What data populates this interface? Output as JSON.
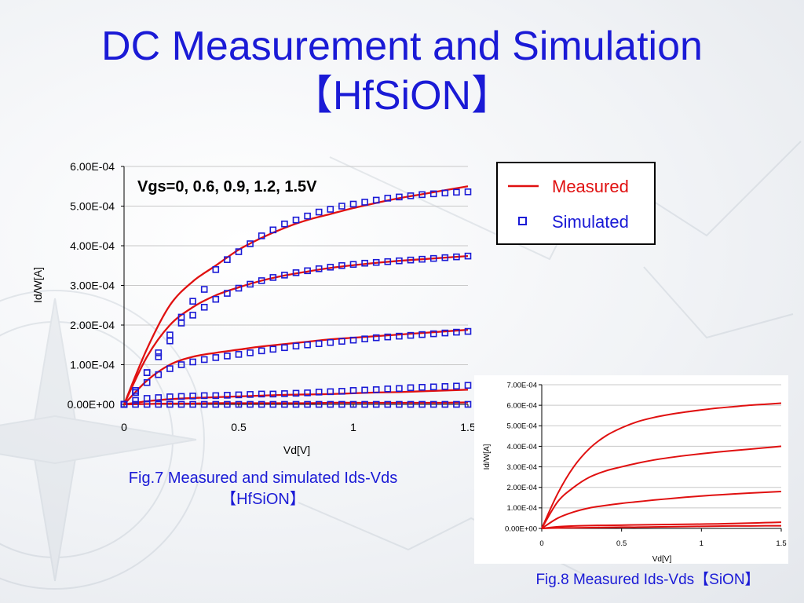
{
  "slide": {
    "title_line1": "DC Measurement and Simulation",
    "title_line2": "【HfSiON】"
  },
  "chart_data": [
    {
      "type": "line",
      "annotation": "Vgs=0, 0.6, 0.9, 1.2, 1.5V",
      "xlabel": "Vd[V]",
      "ylabel": "Id/W[A]",
      "xlim": [
        0,
        1.5
      ],
      "ylim": [
        0,
        0.0006
      ],
      "x_ticks": [
        "0",
        "0.5",
        "1",
        "1.5"
      ],
      "y_ticks": [
        "0.00E+00",
        "1.00E-04",
        "2.00E-04",
        "3.00E-04",
        "4.00E-04",
        "5.00E-04",
        "6.00E-04"
      ],
      "grid": "horizontal",
      "legend": {
        "placement": "right",
        "entries": [
          "Measured",
          "Simulated"
        ]
      },
      "colors": {
        "measured": "#e01010",
        "simulated": "#1a1ad6"
      },
      "caption_line1": "Fig.7 Measured and simulated Ids-Vds",
      "caption_line2": "【HfSiON】",
      "series": [
        {
          "name": "Measured",
          "vgs": 0.0,
          "x": [
            0,
            0.1,
            0.2,
            0.3,
            0.4,
            0.5,
            0.6,
            0.7,
            0.8,
            0.9,
            1.0,
            1.1,
            1.2,
            1.3,
            1.4,
            1.5
          ],
          "y": [
            0,
            1e-06,
            2e-06,
            2e-06,
            3e-06,
            3e-06,
            3e-06,
            3e-06,
            3e-06,
            4e-06,
            4e-06,
            4e-06,
            4e-06,
            4e-06,
            4e-06,
            5e-06
          ]
        },
        {
          "name": "Measured",
          "vgs": 0.6,
          "x": [
            0,
            0.1,
            0.2,
            0.3,
            0.4,
            0.5,
            0.6,
            0.7,
            0.8,
            0.9,
            1.0,
            1.1,
            1.2,
            1.3,
            1.4,
            1.5
          ],
          "y": [
            0,
            8e-06,
            1.3e-05,
            1.6e-05,
            1.8e-05,
            2e-05,
            2.2e-05,
            2.4e-05,
            2.5e-05,
            2.6e-05,
            2.8e-05,
            3e-05,
            3.1e-05,
            3.3e-05,
            3.5e-05,
            3.7e-05
          ]
        },
        {
          "name": "Measured",
          "vgs": 0.9,
          "x": [
            0,
            0.1,
            0.2,
            0.3,
            0.4,
            0.5,
            0.6,
            0.7,
            0.8,
            0.9,
            1.0,
            1.1,
            1.2,
            1.3,
            1.4,
            1.5
          ],
          "y": [
            0,
            6e-05,
            0.0001,
            0.00012,
            0.00013,
            0.000138,
            0.000146,
            0.000152,
            0.000158,
            0.000164,
            0.000168,
            0.000172,
            0.000176,
            0.00018,
            0.000184,
            0.000188
          ]
        },
        {
          "name": "Measured",
          "vgs": 1.2,
          "x": [
            0,
            0.1,
            0.2,
            0.3,
            0.4,
            0.5,
            0.6,
            0.7,
            0.8,
            0.9,
            1.0,
            1.1,
            1.2,
            1.3,
            1.4,
            1.5
          ],
          "y": [
            0,
            0.00012,
            0.0002,
            0.000245,
            0.000275,
            0.000295,
            0.000312,
            0.000325,
            0.000335,
            0.000344,
            0.000351,
            0.000357,
            0.000362,
            0.000366,
            0.00037,
            0.000374
          ]
        },
        {
          "name": "Measured",
          "vgs": 1.5,
          "x": [
            0,
            0.1,
            0.2,
            0.3,
            0.4,
            0.5,
            0.6,
            0.7,
            0.8,
            0.9,
            1.0,
            1.1,
            1.2,
            1.3,
            1.4,
            1.5
          ],
          "y": [
            0,
            0.00014,
            0.00025,
            0.00031,
            0.00035,
            0.00039,
            0.00042,
            0.000445,
            0.000465,
            0.00048,
            0.000495,
            0.000508,
            0.00052,
            0.00053,
            0.00054,
            0.00055
          ]
        },
        {
          "name": "Simulated",
          "vgs": 0.0,
          "x": [
            0,
            0.05,
            0.1,
            0.15,
            0.2,
            0.25,
            0.3,
            0.35,
            0.4,
            0.45,
            0.5,
            0.55,
            0.6,
            0.65,
            0.7,
            0.75,
            0.8,
            0.85,
            0.9,
            0.95,
            1.0,
            1.05,
            1.1,
            1.15,
            1.2,
            1.25,
            1.3,
            1.35,
            1.4,
            1.45,
            1.5
          ],
          "y": [
            0,
            0,
            0,
            0,
            0,
            0,
            0,
            0,
            0,
            0,
            0,
            0,
            0,
            0,
            0,
            0,
            0,
            0,
            0,
            0,
            0,
            0,
            0,
            0,
            0,
            0,
            0,
            0,
            0,
            0,
            0
          ]
        },
        {
          "name": "Simulated",
          "vgs": 0.6,
          "x": [
            0,
            0.05,
            0.1,
            0.15,
            0.2,
            0.25,
            0.3,
            0.35,
            0.4,
            0.45,
            0.5,
            0.55,
            0.6,
            0.65,
            0.7,
            0.75,
            0.8,
            0.85,
            0.9,
            0.95,
            1.0,
            1.05,
            1.1,
            1.15,
            1.2,
            1.25,
            1.3,
            1.35,
            1.4,
            1.45,
            1.5
          ],
          "y": [
            0,
            1e-05,
            1.5e-05,
            1.7e-05,
            1.9e-05,
            2e-05,
            2.1e-05,
            2.2e-05,
            2.2e-05,
            2.3e-05,
            2.4e-05,
            2.5e-05,
            2.6e-05,
            2.6e-05,
            2.7e-05,
            2.8e-05,
            2.9e-05,
            3.1e-05,
            3.2e-05,
            3.3e-05,
            3.5e-05,
            3.6e-05,
            3.7e-05,
            3.9e-05,
            4e-05,
            4.2e-05,
            4.3e-05,
            4.4e-05,
            4.5e-05,
            4.6e-05,
            4.8e-05
          ]
        },
        {
          "name": "Simulated",
          "vgs": 0.9,
          "x": [
            0,
            0.05,
            0.1,
            0.15,
            0.2,
            0.25,
            0.3,
            0.35,
            0.4,
            0.45,
            0.5,
            0.55,
            0.6,
            0.65,
            0.7,
            0.75,
            0.8,
            0.85,
            0.9,
            0.95,
            1.0,
            1.05,
            1.1,
            1.15,
            1.2,
            1.25,
            1.3,
            1.35,
            1.4,
            1.45,
            1.5
          ],
          "y": [
            0,
            3e-05,
            5.5e-05,
            7.5e-05,
            9e-05,
            0.0001,
            0.000107,
            0.000113,
            0.000118,
            0.000122,
            0.000126,
            0.00013,
            0.000135,
            0.000139,
            0.000143,
            0.000147,
            0.00015,
            0.000153,
            0.000156,
            0.000159,
            0.000162,
            0.000165,
            0.000168,
            0.00017,
            0.000172,
            0.000174,
            0.000176,
            0.000178,
            0.00018,
            0.000182,
            0.000184
          ]
        },
        {
          "name": "Simulated",
          "vgs": 1.2,
          "x": [
            0,
            0.05,
            0.1,
            0.15,
            0.2,
            0.25,
            0.3,
            0.35,
            0.4,
            0.45,
            0.5,
            0.55,
            0.6,
            0.65,
            0.7,
            0.75,
            0.8,
            0.85,
            0.9,
            0.95,
            1.0,
            1.05,
            1.1,
            1.15,
            1.2,
            1.25,
            1.3,
            1.35,
            1.4,
            1.45,
            1.5
          ],
          "y": [
            0,
            3e-05,
            8e-05,
            0.00013,
            0.000175,
            0.000205,
            0.000225,
            0.000245,
            0.000265,
            0.00028,
            0.000293,
            0.000303,
            0.000312,
            0.00032,
            0.000326,
            0.000332,
            0.000337,
            0.000342,
            0.000346,
            0.00035,
            0.000353,
            0.000356,
            0.000358,
            0.00036,
            0.000362,
            0.000364,
            0.000366,
            0.000368,
            0.00037,
            0.000372,
            0.000374
          ]
        },
        {
          "name": "Simulated",
          "vgs": 1.5,
          "x": [
            0,
            0.05,
            0.1,
            0.15,
            0.2,
            0.25,
            0.3,
            0.35,
            0.4,
            0.45,
            0.5,
            0.55,
            0.6,
            0.65,
            0.7,
            0.75,
            0.8,
            0.85,
            0.9,
            0.95,
            1.0,
            1.05,
            1.1,
            1.15,
            1.2,
            1.25,
            1.3,
            1.35,
            1.4,
            1.45,
            1.5
          ],
          "y": [
            0,
            3.5e-05,
            8e-05,
            0.00012,
            0.00016,
            0.00022,
            0.00026,
            0.00029,
            0.00034,
            0.000365,
            0.000385,
            0.000405,
            0.000425,
            0.00044,
            0.000455,
            0.000465,
            0.000475,
            0.000485,
            0.000492,
            0.0005,
            0.000505,
            0.00051,
            0.000515,
            0.00052,
            0.000523,
            0.000526,
            0.000529,
            0.000531,
            0.000533,
            0.000535,
            0.000536
          ]
        }
      ]
    },
    {
      "type": "line",
      "xlabel": "Vd[V]",
      "ylabel": "Id/W[A]",
      "xlim": [
        0,
        1.5
      ],
      "ylim": [
        0,
        0.0007
      ],
      "x_ticks": [
        "0",
        "0.5",
        "1",
        "1.5"
      ],
      "y_ticks": [
        "0.00E+00",
        "1.00E-04",
        "2.00E-04",
        "3.00E-04",
        "4.00E-04",
        "5.00E-04",
        "6.00E-04",
        "7.00E-04"
      ],
      "grid": "horizontal",
      "colors": {
        "measured": "#e01010"
      },
      "caption": "Fig.8 Measured Ids-Vds【SiON】",
      "series": [
        {
          "x": [
            0,
            0.1,
            0.2,
            0.3,
            0.4,
            0.5,
            0.6,
            0.7,
            0.8,
            0.9,
            1.0,
            1.1,
            1.2,
            1.3,
            1.4,
            1.5
          ],
          "y": [
            0,
            2e-06,
            3e-06,
            4e-06,
            5e-06,
            6e-06,
            6e-06,
            7e-06,
            8e-06,
            9e-06,
            1e-05,
            1.1e-05,
            1.2e-05,
            1.2e-05,
            1.3e-05,
            1.3e-05
          ]
        },
        {
          "x": [
            0,
            0.1,
            0.2,
            0.3,
            0.4,
            0.5,
            0.6,
            0.7,
            0.8,
            0.9,
            1.0,
            1.1,
            1.2,
            1.3,
            1.4,
            1.5
          ],
          "y": [
            0,
            8e-06,
            1.2e-05,
            1.4e-05,
            1.5e-05,
            1.6e-05,
            1.7e-05,
            1.8e-05,
            1.9e-05,
            2e-05,
            2.1e-05,
            2.2e-05,
            2.4e-05,
            2.6e-05,
            2.8e-05,
            3e-05
          ]
        },
        {
          "x": [
            0,
            0.1,
            0.2,
            0.3,
            0.4,
            0.5,
            0.6,
            0.7,
            0.8,
            0.9,
            1.0,
            1.1,
            1.2,
            1.3,
            1.4,
            1.5
          ],
          "y": [
            0,
            5e-05,
            8e-05,
            0.0001,
            0.000112,
            0.000122,
            0.00013,
            0.000138,
            0.000145,
            0.000152,
            0.000158,
            0.000163,
            0.000168,
            0.000172,
            0.000176,
            0.00018
          ]
        },
        {
          "x": [
            0,
            0.1,
            0.2,
            0.3,
            0.4,
            0.5,
            0.6,
            0.7,
            0.8,
            0.9,
            1.0,
            1.1,
            1.2,
            1.3,
            1.4,
            1.5
          ],
          "y": [
            0,
            0.00013,
            0.0002,
            0.00025,
            0.00028,
            0.0003,
            0.000318,
            0.000333,
            0.000345,
            0.000355,
            0.000364,
            0.000372,
            0.000379,
            0.000386,
            0.000393,
            0.0004
          ]
        },
        {
          "x": [
            0,
            0.1,
            0.2,
            0.3,
            0.4,
            0.5,
            0.6,
            0.7,
            0.8,
            0.9,
            1.0,
            1.1,
            1.2,
            1.3,
            1.4,
            1.5
          ],
          "y": [
            0,
            0.00017,
            0.0003,
            0.00039,
            0.00045,
            0.00049,
            0.00052,
            0.00054,
            0.000555,
            0.000567,
            0.000577,
            0.000586,
            0.000593,
            0.0006,
            0.000605,
            0.00061
          ]
        }
      ]
    }
  ]
}
